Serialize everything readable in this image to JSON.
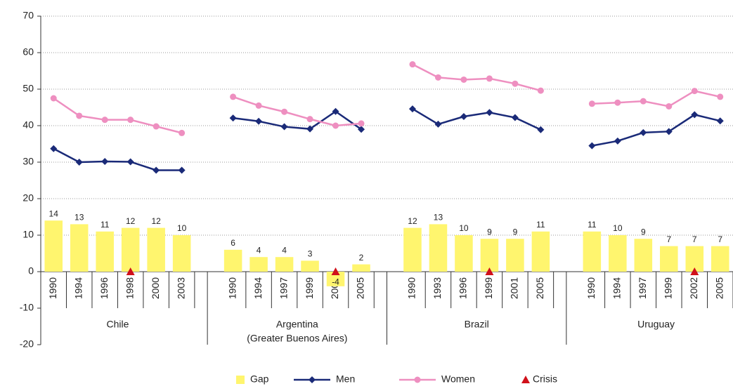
{
  "chart_data": {
    "type": "bar-line",
    "groups": [
      {
        "name": "Chile",
        "categories": [
          "1990",
          "1994",
          "1996",
          "1998",
          "2000",
          "2003"
        ]
      },
      {
        "name": "Argentina",
        "subname": "(Greater Buenos Aires)",
        "categories": [
          "1990",
          "1994",
          "1997",
          "1999",
          "2002",
          "2005"
        ]
      },
      {
        "name": "Brazil",
        "categories": [
          "1990",
          "1993",
          "1996",
          "1999",
          "2001",
          "2005"
        ]
      },
      {
        "name": "Uruguay",
        "categories": [
          "1990",
          "1994",
          "1997",
          "1999",
          "2002",
          "2005"
        ]
      }
    ],
    "series": [
      {
        "name": "Gap",
        "type": "bar",
        "color": "#fff56e",
        "values": [
          14,
          13,
          11,
          12,
          12,
          10,
          6,
          4,
          4,
          3,
          -4,
          2,
          12,
          13,
          10,
          9,
          9,
          11,
          11,
          10,
          9,
          7,
          7,
          7
        ]
      },
      {
        "name": "Men",
        "type": "line",
        "marker": "diamond",
        "color": "#1a2a78",
        "values": [
          33.7,
          30,
          30.2,
          30.1,
          27.8,
          27.8,
          42.1,
          41.2,
          39.7,
          39.1,
          43.9,
          39,
          44.6,
          40.4,
          42.5,
          43.6,
          42.2,
          38.9,
          34.5,
          35.8,
          38.1,
          38.4,
          43,
          41.3
        ]
      },
      {
        "name": "Women",
        "type": "line",
        "marker": "circle",
        "color": "#ee8fc0",
        "values": [
          47.5,
          42.7,
          41.6,
          41.6,
          39.8,
          38,
          47.9,
          45.5,
          43.8,
          41.8,
          40,
          40.6,
          56.8,
          53.2,
          52.6,
          52.9,
          51.5,
          49.6,
          46,
          46.3,
          46.7,
          45.3,
          49.5,
          47.9
        ]
      },
      {
        "name": "Crisis",
        "type": "marker",
        "marker": "triangle",
        "color": "#d0101a",
        "values": [
          null,
          null,
          null,
          0,
          null,
          null,
          null,
          null,
          null,
          null,
          0,
          null,
          null,
          null,
          null,
          0,
          null,
          null,
          null,
          null,
          null,
          null,
          0,
          null
        ]
      }
    ],
    "ylim": [
      -20,
      70
    ],
    "yticks": [
      -20,
      -10,
      0,
      10,
      20,
      30,
      40,
      50,
      60,
      70
    ],
    "grid": true
  }
}
